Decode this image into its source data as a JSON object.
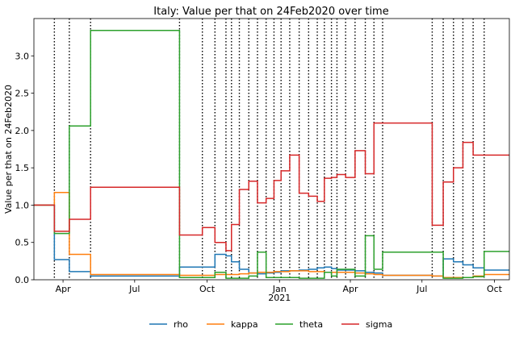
{
  "chart_data": {
    "type": "line",
    "title": "Italy: Value per that on 24Feb2020 over time",
    "ylabel": "Value per that on 24Feb2020",
    "xlabel": "",
    "xlim": [
      "2020-02-24",
      "2021-10-20"
    ],
    "ylim": [
      0,
      3.5
    ],
    "yticks": [
      0.0,
      0.5,
      1.0,
      1.5,
      2.0,
      2.5,
      3.0
    ],
    "ytick_labels": [
      "0.0",
      "0.5",
      "1.0",
      "1.5",
      "2.0",
      "2.5",
      "3.0"
    ],
    "xticks": [
      {
        "date": "2020-04-01",
        "label": "Apr",
        "sublabel": ""
      },
      {
        "date": "2020-07-01",
        "label": "Jul",
        "sublabel": ""
      },
      {
        "date": "2020-10-01",
        "label": "Oct",
        "sublabel": ""
      },
      {
        "date": "2021-01-01",
        "label": "Jan",
        "sublabel": "2021"
      },
      {
        "date": "2021-04-01",
        "label": "Apr",
        "sublabel": ""
      },
      {
        "date": "2021-07-01",
        "label": "Jul",
        "sublabel": ""
      },
      {
        "date": "2021-10-01",
        "label": "Oct",
        "sublabel": ""
      }
    ],
    "change_dates": [
      "2020-03-21",
      "2020-04-09",
      "2020-05-06",
      "2020-08-27",
      "2020-09-25",
      "2020-10-11",
      "2020-10-25",
      "2020-11-01",
      "2020-11-11",
      "2020-11-23",
      "2020-12-04",
      "2020-12-15",
      "2020-12-25",
      "2021-01-03",
      "2021-01-14",
      "2021-01-26",
      "2021-02-07",
      "2021-02-18",
      "2021-02-27",
      "2021-03-08",
      "2021-03-15",
      "2021-03-26",
      "2021-04-07",
      "2021-04-20",
      "2021-05-01",
      "2021-05-12",
      "2021-07-14",
      "2021-07-28",
      "2021-08-10",
      "2021-08-22",
      "2021-09-04",
      "2021-09-18"
    ],
    "legend_position": "bottom",
    "grid": false,
    "series": [
      {
        "name": "rho",
        "color": "#1f77b4",
        "x": [
          "2020-02-24",
          "2020-03-21",
          "2020-04-09",
          "2020-05-06",
          "2020-08-27",
          "2020-09-25",
          "2020-10-11",
          "2020-10-25",
          "2020-11-01",
          "2020-11-11",
          "2020-11-23",
          "2020-12-04",
          "2020-12-15",
          "2020-12-25",
          "2021-01-03",
          "2021-01-14",
          "2021-01-26",
          "2021-02-07",
          "2021-02-18",
          "2021-02-27",
          "2021-03-08",
          "2021-03-15",
          "2021-03-26",
          "2021-04-07",
          "2021-04-20",
          "2021-05-01",
          "2021-05-12",
          "2021-07-14",
          "2021-07-28",
          "2021-08-10",
          "2021-08-22",
          "2021-09-04",
          "2021-09-18",
          "2021-10-20"
        ],
        "y": [
          1.0,
          0.27,
          0.11,
          0.05,
          0.17,
          0.17,
          0.34,
          0.32,
          0.24,
          0.14,
          0.09,
          0.08,
          0.09,
          0.1,
          0.12,
          0.12,
          0.13,
          0.14,
          0.16,
          0.17,
          0.15,
          0.13,
          0.13,
          0.12,
          0.1,
          0.09,
          0.06,
          0.05,
          0.28,
          0.24,
          0.2,
          0.16,
          0.13,
          0.13
        ]
      },
      {
        "name": "kappa",
        "color": "#ff7f0e",
        "x": [
          "2020-02-24",
          "2020-03-21",
          "2020-04-09",
          "2020-05-06",
          "2020-08-27",
          "2020-09-25",
          "2020-10-11",
          "2020-10-25",
          "2020-11-01",
          "2020-11-11",
          "2020-11-23",
          "2020-12-04",
          "2020-12-15",
          "2020-12-25",
          "2021-01-03",
          "2021-01-14",
          "2021-01-26",
          "2021-02-07",
          "2021-02-18",
          "2021-02-27",
          "2021-03-08",
          "2021-03-15",
          "2021-03-26",
          "2021-04-07",
          "2021-04-20",
          "2021-05-01",
          "2021-05-12",
          "2021-07-14",
          "2021-07-28",
          "2021-08-10",
          "2021-08-22",
          "2021-09-04",
          "2021-09-18",
          "2021-10-20"
        ],
        "y": [
          1.0,
          1.17,
          0.34,
          0.07,
          0.06,
          0.06,
          0.07,
          0.07,
          0.07,
          0.08,
          0.09,
          0.1,
          0.1,
          0.11,
          0.11,
          0.12,
          0.12,
          0.11,
          0.11,
          0.1,
          0.1,
          0.1,
          0.1,
          0.09,
          0.08,
          0.07,
          0.06,
          0.05,
          0.03,
          0.03,
          0.03,
          0.05,
          0.07,
          0.07
        ]
      },
      {
        "name": "theta",
        "color": "#2ca02c",
        "x": [
          "2020-02-24",
          "2020-03-21",
          "2020-04-09",
          "2020-05-06",
          "2020-08-27",
          "2020-09-25",
          "2020-10-11",
          "2020-10-25",
          "2020-11-01",
          "2020-11-11",
          "2020-11-23",
          "2020-12-04",
          "2020-12-15",
          "2020-12-25",
          "2021-01-03",
          "2021-01-14",
          "2021-01-26",
          "2021-02-07",
          "2021-02-18",
          "2021-02-27",
          "2021-03-08",
          "2021-03-15",
          "2021-03-26",
          "2021-04-07",
          "2021-04-20",
          "2021-05-01",
          "2021-05-12",
          "2021-07-14",
          "2021-07-28",
          "2021-08-10",
          "2021-08-22",
          "2021-09-04",
          "2021-09-18",
          "2021-10-20"
        ],
        "y": [
          1.0,
          0.62,
          2.06,
          3.34,
          0.03,
          0.03,
          0.1,
          0.02,
          0.02,
          0.02,
          0.05,
          0.37,
          0.03,
          0.03,
          0.03,
          0.03,
          0.02,
          0.02,
          0.02,
          0.1,
          0.05,
          0.14,
          0.14,
          0.05,
          0.59,
          0.14,
          0.37,
          0.37,
          0.02,
          0.02,
          0.03,
          0.04,
          0.38,
          0.38
        ]
      },
      {
        "name": "sigma",
        "color": "#d62728",
        "x": [
          "2020-02-24",
          "2020-03-21",
          "2020-04-09",
          "2020-05-06",
          "2020-08-27",
          "2020-09-25",
          "2020-10-11",
          "2020-10-25",
          "2020-11-01",
          "2020-11-11",
          "2020-11-23",
          "2020-12-04",
          "2020-12-15",
          "2020-12-25",
          "2021-01-03",
          "2021-01-14",
          "2021-01-26",
          "2021-02-07",
          "2021-02-18",
          "2021-02-27",
          "2021-03-08",
          "2021-03-15",
          "2021-03-26",
          "2021-04-07",
          "2021-04-20",
          "2021-05-01",
          "2021-05-12",
          "2021-07-14",
          "2021-07-28",
          "2021-08-10",
          "2021-08-22",
          "2021-09-04",
          "2021-09-18",
          "2021-10-20"
        ],
        "y": [
          1.0,
          0.65,
          0.81,
          1.24,
          0.6,
          0.7,
          0.5,
          0.39,
          0.74,
          1.21,
          1.32,
          1.03,
          1.09,
          1.33,
          1.46,
          1.67,
          1.16,
          1.12,
          1.05,
          1.36,
          1.37,
          1.41,
          1.37,
          1.73,
          1.42,
          2.1,
          2.1,
          0.73,
          1.31,
          1.5,
          1.84,
          1.67,
          1.67,
          1.67
        ]
      }
    ]
  }
}
